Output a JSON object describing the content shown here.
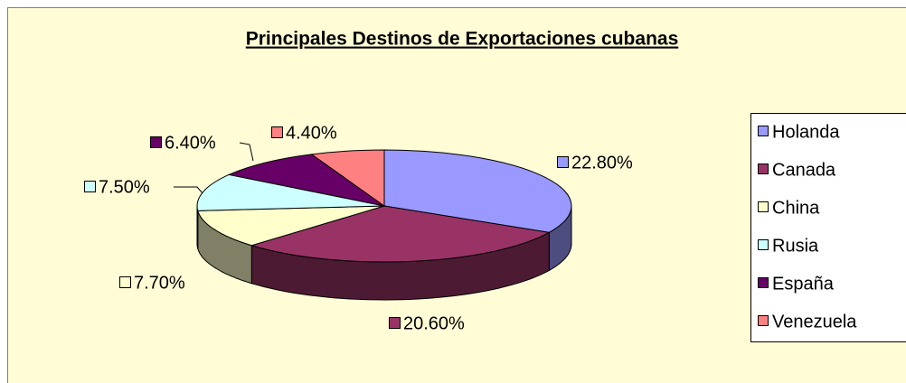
{
  "chart_data": {
    "type": "pie3d",
    "title": "Principales Destinos de Exportaciones cubanas",
    "categories": [
      "Holanda",
      "Canada",
      "China",
      "Rusia",
      "España",
      "Venezuela"
    ],
    "values": [
      22.8,
      20.6,
      7.7,
      7.5,
      6.4,
      4.4
    ],
    "value_labels": [
      "22.80%",
      "20.60%",
      "7.70%",
      "7.50%",
      "6.40%",
      "4.40%"
    ],
    "colors": [
      "#9999ff",
      "#993366",
      "#ffffcc",
      "#ccffff",
      "#660066",
      "#ff8080"
    ],
    "legend": "right"
  }
}
